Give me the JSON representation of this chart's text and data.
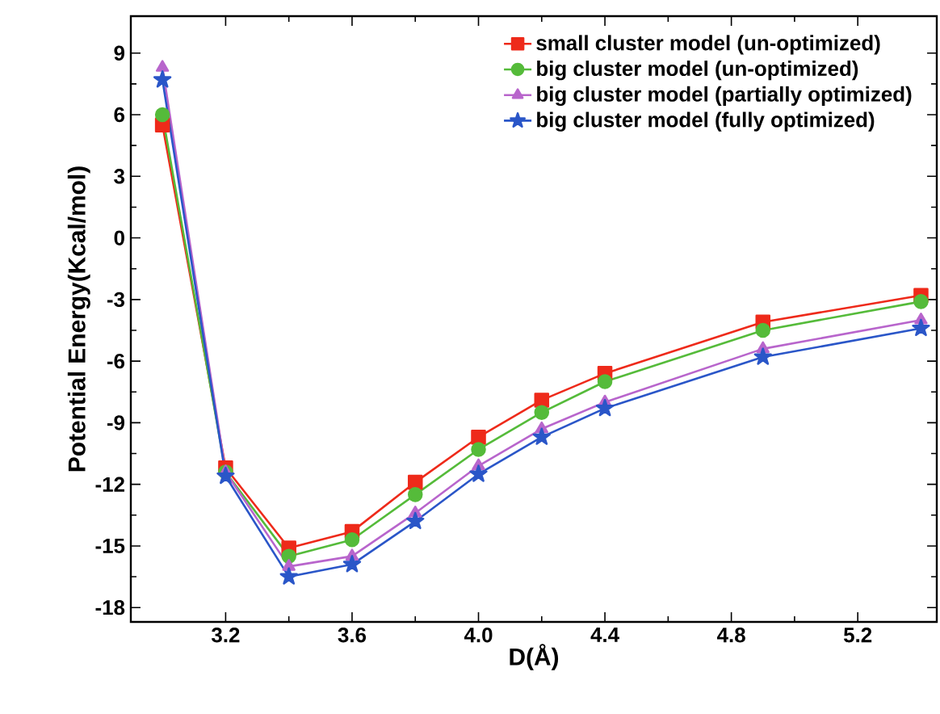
{
  "chart_data": {
    "type": "line",
    "xlabel": "D(Å)",
    "ylabel": "Potential Energy(Kcal/mol)",
    "x": [
      3.0,
      3.2,
      3.4,
      3.6,
      3.8,
      4.0,
      4.2,
      4.4,
      4.9,
      5.4
    ],
    "xlim": [
      2.9,
      5.45
    ],
    "xticks": [
      3.2,
      3.6,
      {
        "value": 4.0,
        "label": "4.0"
      },
      4.4,
      4.8,
      5.2
    ],
    "ylim": [
      -18.7,
      10.8
    ],
    "yticks": [
      -18,
      -15,
      -12,
      -9,
      -6,
      -3,
      0,
      3,
      6,
      9
    ],
    "legend": "top right",
    "grid": false,
    "line_style": "solid",
    "series": [
      {
        "name": "small cluster model (un-optimized)",
        "color": "#ee2a1a",
        "marker": "square",
        "values": [
          5.5,
          -11.2,
          -15.1,
          -14.3,
          -11.9,
          -9.7,
          -7.9,
          -6.6,
          -4.1,
          -2.8
        ]
      },
      {
        "name": "big cluster model (un-optimized)",
        "color": "#55bb3a",
        "marker": "circle",
        "values": [
          6.0,
          -11.4,
          -15.5,
          -14.7,
          -12.5,
          -10.3,
          -8.5,
          -7.0,
          -4.5,
          -3.1
        ]
      },
      {
        "name": "big cluster model (partially optimized)",
        "color": "#b865cc",
        "marker": "triangle",
        "values": [
          8.3,
          -11.4,
          -16.0,
          -15.5,
          -13.4,
          -11.1,
          -9.3,
          -8.0,
          -5.4,
          -4.0
        ]
      },
      {
        "name": "big cluster model (fully optimized)",
        "color": "#2a56c8",
        "marker": "star",
        "values": [
          7.7,
          -11.6,
          -16.5,
          -15.9,
          -13.8,
          -11.5,
          -9.7,
          -8.3,
          -5.8,
          -4.4
        ]
      }
    ]
  }
}
